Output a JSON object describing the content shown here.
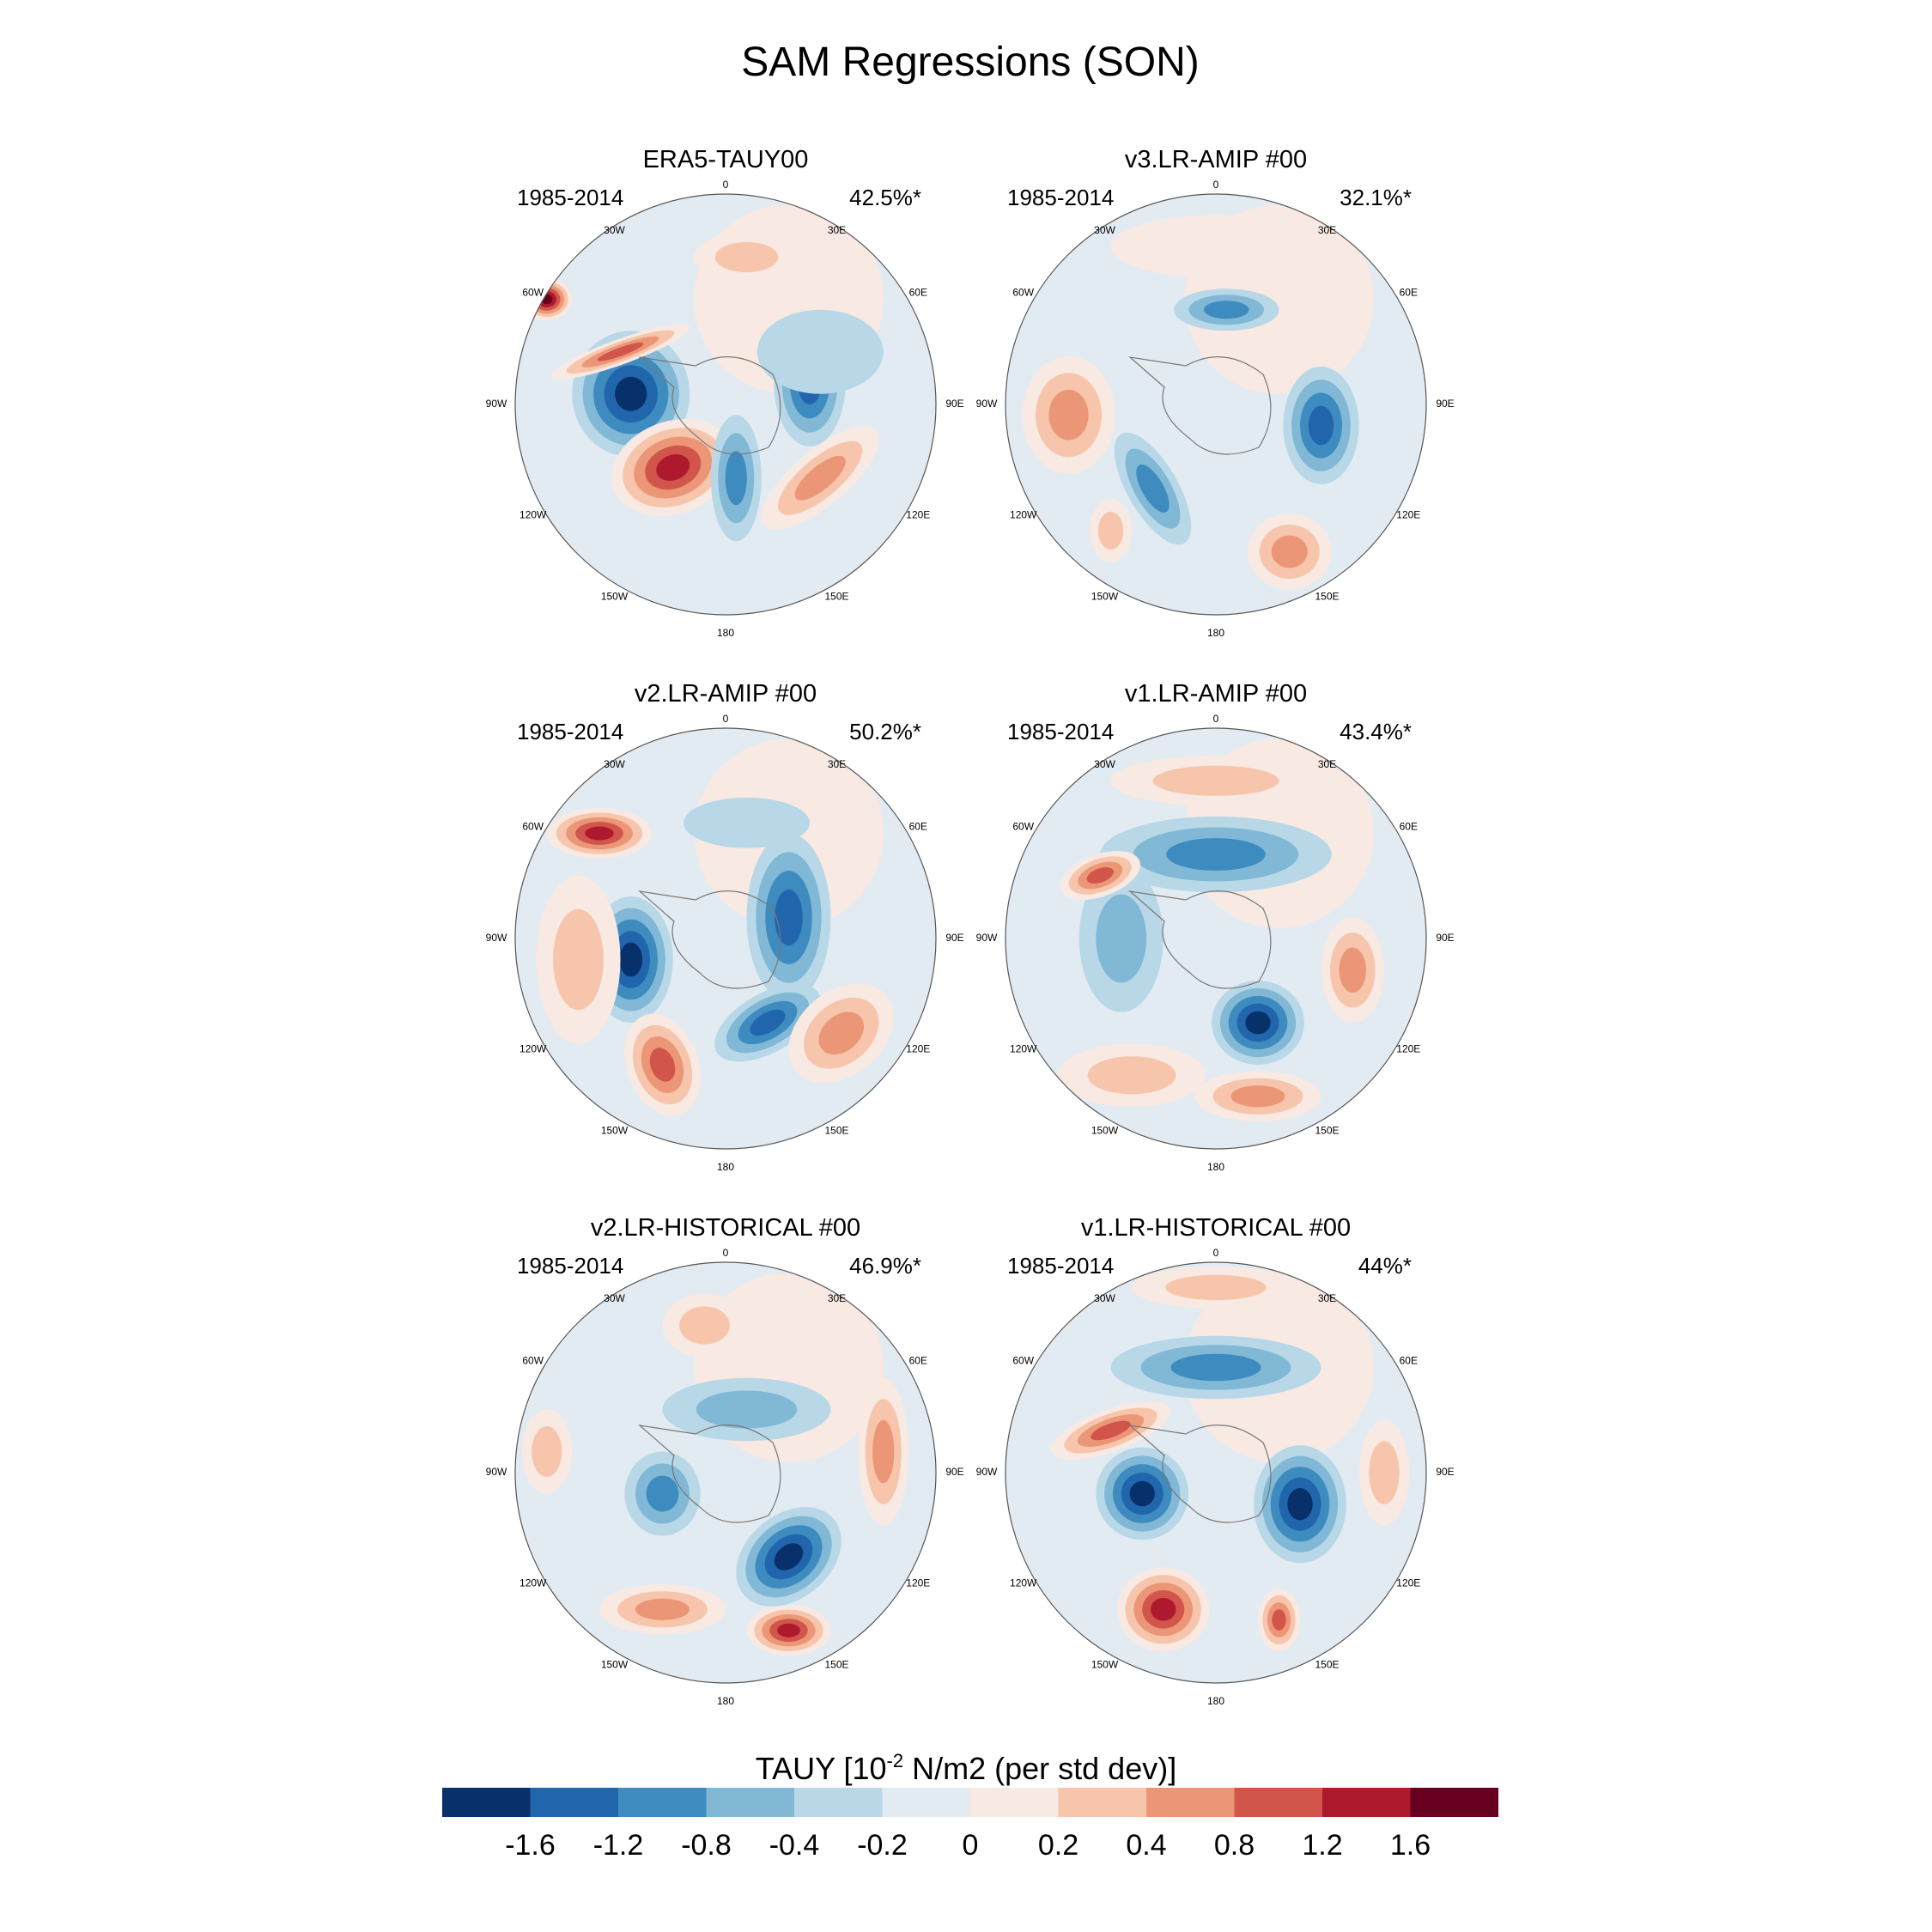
{
  "chart_data": {
    "type": "heatmap",
    "title": "SAM Regressions (SON)",
    "projection": "south-polar-stereographic",
    "lon_labels": [
      "0",
      "30E",
      "60E",
      "90E",
      "120E",
      "150E",
      "180",
      "150W",
      "120W",
      "90W",
      "60W",
      "30W"
    ],
    "panels": [
      {
        "title": "ERA5-TAUY00",
        "period": "1985-2014",
        "variance": "42.5%*"
      },
      {
        "title": "v3.LR-AMIP  #00",
        "period": "1985-2014",
        "variance": "32.1%*"
      },
      {
        "title": "v2.LR-AMIP  #00",
        "period": "1985-2014",
        "variance": "50.2%*"
      },
      {
        "title": "v1.LR-AMIP  #00",
        "period": "1985-2014",
        "variance": "43.4%*"
      },
      {
        "title": "v2.LR-HISTORICAL  #00",
        "period": "1985-2014",
        "variance": "46.9%*"
      },
      {
        "title": "v1.LR-HISTORICAL  #00",
        "period": "1985-2014",
        "variance": "44%*"
      }
    ],
    "colorbar": {
      "title_pre": "TAUY [10",
      "title_sup": "-2",
      "title_post": " N/m2 (per std dev)]",
      "levels": [
        "-1.6",
        "-1.2",
        "-0.8",
        "-0.4",
        "-0.2",
        "0",
        "0.2",
        "0.4",
        "0.8",
        "1.2",
        "1.6"
      ],
      "colors": [
        "#08306b",
        "#2166ac",
        "#3e8bc0",
        "#80b8d6",
        "#b8d8e8",
        "#e3ebf2",
        "#f8e9e2",
        "#f7c5ab",
        "#eb9676",
        "#d1554a",
        "#ae1a2d",
        "#67001f"
      ]
    }
  }
}
